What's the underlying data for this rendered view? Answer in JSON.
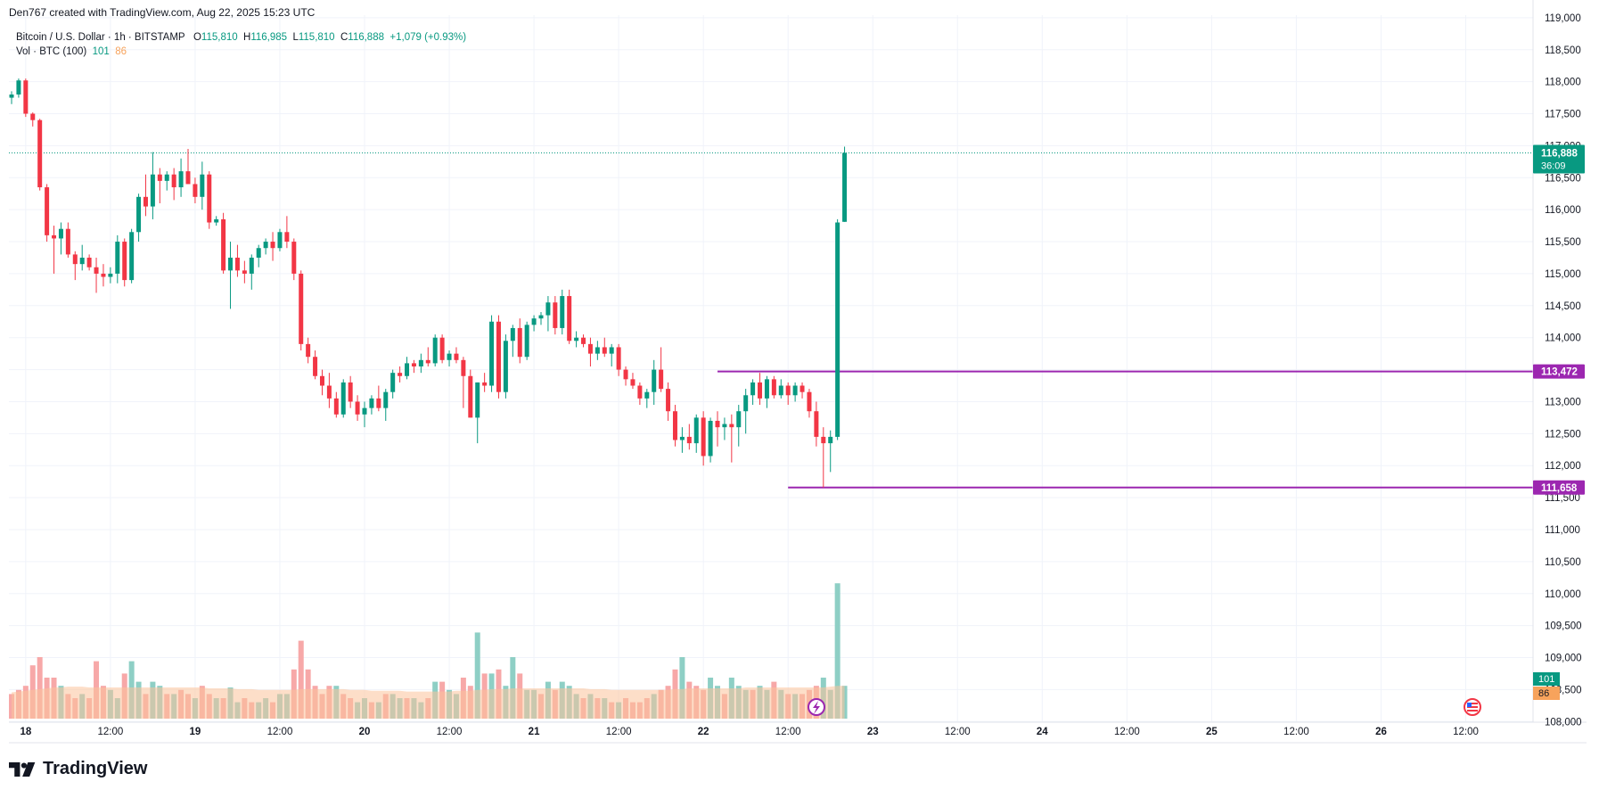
{
  "header": {
    "text": "Den767 created with TradingView.com, Aug 22, 2025 15:23 UTC"
  },
  "legend": {
    "symbol": "Bitcoin / U.S. Dollar · 1h · BITSTAMP",
    "o_label": "O",
    "o_value": "115,810",
    "h_label": "H",
    "h_value": "116,985",
    "l_label": "L",
    "l_value": "115,810",
    "c_label": "C",
    "c_value": "116,888",
    "change": "+1,079 (+0.93%)",
    "vol_label": "Vol · BTC (100)",
    "vol_value_a": "101",
    "vol_value_b": "86"
  },
  "logo": {
    "text": "TradingView"
  },
  "chart_data": {
    "type": "candlestick",
    "y_ticks": [
      "119,000",
      "118,500",
      "118,000",
      "117,500",
      "117,000",
      "116,500",
      "116,000",
      "115,500",
      "115,000",
      "114,500",
      "114,000",
      "113,500",
      "113,000",
      "112,500",
      "112,000",
      "111,500",
      "111,000",
      "110,500",
      "110,000",
      "109,500",
      "109,000",
      "108,500",
      "108,000"
    ],
    "y_tick_values": [
      119000,
      118500,
      118000,
      117500,
      117000,
      116500,
      116000,
      115500,
      115000,
      114500,
      114000,
      113500,
      113000,
      112500,
      112000,
      111500,
      111000,
      110500,
      110000,
      109500,
      109000,
      108500,
      108000
    ],
    "ylim": [
      107990,
      119040
    ],
    "x_ticks": [
      {
        "label": "18",
        "bar": 2,
        "bold": true
      },
      {
        "label": "12:00",
        "bar": 14,
        "bold": false
      },
      {
        "label": "19",
        "bar": 26,
        "bold": true
      },
      {
        "label": "12:00",
        "bar": 38,
        "bold": false
      },
      {
        "label": "20",
        "bar": 50,
        "bold": true
      },
      {
        "label": "12:00",
        "bar": 62,
        "bold": false
      },
      {
        "label": "21",
        "bar": 74,
        "bold": true
      },
      {
        "label": "12:00",
        "bar": 86,
        "bold": false
      },
      {
        "label": "22",
        "bar": 98,
        "bold": true
      },
      {
        "label": "12:00",
        "bar": 110,
        "bold": false
      },
      {
        "label": "23",
        "bar": 122,
        "bold": true
      },
      {
        "label": "12:00",
        "bar": 134,
        "bold": false
      },
      {
        "label": "24",
        "bar": 146,
        "bold": true
      },
      {
        "label": "12:00",
        "bar": 158,
        "bold": false
      },
      {
        "label": "25",
        "bar": 170,
        "bold": true
      },
      {
        "label": "12:00",
        "bar": 182,
        "bold": false
      },
      {
        "label": "26",
        "bar": 194,
        "bold": true
      },
      {
        "label": "12:00",
        "bar": 206,
        "bold": false
      }
    ],
    "last_price": {
      "value": 116888,
      "label": "116,888",
      "countdown": "36:09",
      "color": "#089981"
    },
    "levels": [
      {
        "value": 113472,
        "label": "113,472",
        "from_bar": 100,
        "color": "#9c27b0"
      },
      {
        "value": 111658,
        "label": "111,658",
        "from_bar": 110,
        "color": "#9c27b0"
      }
    ],
    "volume_labels": [
      {
        "text": "101",
        "color": "#089981"
      },
      {
        "text": "86",
        "color": "#f7a35c"
      }
    ],
    "colors": {
      "up": "#089981",
      "down": "#f23645",
      "vol_up": "#8ecfc5",
      "vol_down": "#f7a8a8",
      "vol_ma": "#fbc39a",
      "grid": "#f0f3fa"
    },
    "candles": [
      [
        117750,
        117850,
        117650,
        117800
      ],
      [
        117800,
        118050,
        117750,
        118020
      ],
      [
        118020,
        118050,
        117450,
        117500
      ],
      [
        117500,
        117520,
        117300,
        117400
      ],
      [
        117400,
        117420,
        116300,
        116350
      ],
      [
        116350,
        116400,
        115500,
        115600
      ],
      [
        115600,
        115750,
        115000,
        115550
      ],
      [
        115550,
        115800,
        115300,
        115700
      ],
      [
        115700,
        115800,
        115250,
        115300
      ],
      [
        115300,
        115350,
        114900,
        115150
      ],
      [
        115150,
        115450,
        115050,
        115250
      ],
      [
        115250,
        115300,
        115050,
        115100
      ],
      [
        115100,
        115250,
        114700,
        115000
      ],
      [
        115000,
        115150,
        114800,
        114950
      ],
      [
        114950,
        115100,
        114850,
        115000
      ],
      [
        115000,
        115600,
        114850,
        115500
      ],
      [
        115500,
        115550,
        114800,
        114900
      ],
      [
        114900,
        115700,
        114850,
        115650
      ],
      [
        115650,
        116250,
        115500,
        116200
      ],
      [
        116200,
        116550,
        115900,
        116050
      ],
      [
        116050,
        116900,
        115850,
        116550
      ],
      [
        116550,
        116650,
        116100,
        116450
      ],
      [
        116450,
        116600,
        116300,
        116550
      ],
      [
        116550,
        116650,
        116150,
        116350
      ],
      [
        116350,
        116800,
        116200,
        116600
      ],
      [
        116600,
        116950,
        116450,
        116400
      ],
      [
        116400,
        116500,
        116100,
        116200
      ],
      [
        116200,
        116750,
        116000,
        116550
      ],
      [
        116550,
        116600,
        115700,
        115800
      ],
      [
        115800,
        115900,
        115750,
        115850
      ],
      [
        115850,
        115950,
        115000,
        115050
      ],
      [
        115050,
        115500,
        114450,
        115250
      ],
      [
        115250,
        115450,
        114950,
        115050
      ],
      [
        115050,
        115200,
        114850,
        115000
      ],
      [
        115000,
        115300,
        114750,
        115250
      ],
      [
        115250,
        115450,
        115100,
        115400
      ],
      [
        115400,
        115550,
        115300,
        115500
      ],
      [
        115500,
        115650,
        115200,
        115400
      ],
      [
        115400,
        115700,
        115350,
        115650
      ],
      [
        115650,
        115900,
        115400,
        115500
      ],
      [
        115500,
        115550,
        114900,
        115000
      ],
      [
        115000,
        115050,
        113800,
        113900
      ],
      [
        113900,
        114000,
        113600,
        113700
      ],
      [
        113700,
        113800,
        113350,
        113400
      ],
      [
        113400,
        113500,
        113100,
        113250
      ],
      [
        113250,
        113450,
        112900,
        113050
      ],
      [
        113050,
        113150,
        112750,
        112800
      ],
      [
        112800,
        113350,
        112750,
        113300
      ],
      [
        113300,
        113400,
        112900,
        113000
      ],
      [
        113000,
        113100,
        112700,
        112800
      ],
      [
        112800,
        113000,
        112600,
        112900
      ],
      [
        112900,
        113100,
        112800,
        113050
      ],
      [
        113050,
        113250,
        112850,
        112900
      ],
      [
        112900,
        113200,
        112700,
        113150
      ],
      [
        113150,
        113500,
        113050,
        113450
      ],
      [
        113450,
        113550,
        113300,
        113400
      ],
      [
        113400,
        113700,
        113350,
        113600
      ],
      [
        113600,
        113650,
        113450,
        113550
      ],
      [
        113550,
        113750,
        113450,
        113650
      ],
      [
        113650,
        113850,
        113550,
        113600
      ],
      [
        113600,
        114050,
        113550,
        114000
      ],
      [
        114000,
        114050,
        113600,
        113650
      ],
      [
        113650,
        113800,
        113550,
        113750
      ],
      [
        113750,
        113850,
        113600,
        113650
      ],
      [
        113650,
        113700,
        112900,
        113400
      ],
      [
        113400,
        113500,
        112750,
        112750
      ],
      [
        112750,
        113300,
        112350,
        113300
      ],
      [
        113300,
        113450,
        113150,
        113250
      ],
      [
        113250,
        114350,
        113150,
        114250
      ],
      [
        114250,
        114350,
        113050,
        113150
      ],
      [
        113150,
        114050,
        113050,
        113950
      ],
      [
        113950,
        114200,
        113700,
        114150
      ],
      [
        114150,
        114300,
        113600,
        113700
      ],
      [
        113700,
        114250,
        113650,
        114200
      ],
      [
        114200,
        114350,
        114100,
        114300
      ],
      [
        114300,
        114400,
        114200,
        114350
      ],
      [
        114350,
        114650,
        114100,
        114550
      ],
      [
        114550,
        114650,
        114050,
        114150
      ],
      [
        114150,
        114750,
        114050,
        114650
      ],
      [
        114650,
        114750,
        113900,
        113950
      ],
      [
        113950,
        114100,
        113850,
        114000
      ],
      [
        114000,
        114050,
        113850,
        113900
      ],
      [
        113900,
        114000,
        113550,
        113750
      ],
      [
        113750,
        113950,
        113650,
        113850
      ],
      [
        113850,
        114000,
        113700,
        113750
      ],
      [
        113750,
        113900,
        113550,
        113850
      ],
      [
        113850,
        113900,
        113400,
        113500
      ],
      [
        113500,
        113550,
        113250,
        113350
      ],
      [
        113350,
        113450,
        113200,
        113250
      ],
      [
        113250,
        113300,
        112950,
        113050
      ],
      [
        113050,
        113200,
        112900,
        113150
      ],
      [
        113150,
        113650,
        112950,
        113500
      ],
      [
        113500,
        113850,
        113150,
        113200
      ],
      [
        113200,
        113300,
        112700,
        112850
      ],
      [
        112850,
        112950,
        112300,
        112400
      ],
      [
        112400,
        112600,
        112200,
        112450
      ],
      [
        112450,
        112650,
        112250,
        112350
      ],
      [
        112350,
        112800,
        112200,
        112750
      ],
      [
        112750,
        112850,
        112000,
        112150
      ],
      [
        112150,
        112750,
        112050,
        112700
      ],
      [
        112700,
        112850,
        112300,
        112600
      ],
      [
        112600,
        112750,
        112400,
        112650
      ],
      [
        112650,
        112800,
        112050,
        112600
      ],
      [
        112600,
        112950,
        112300,
        112850
      ],
      [
        112850,
        113200,
        112500,
        113100
      ],
      [
        113100,
        113350,
        112950,
        113300
      ],
      [
        113300,
        113450,
        112950,
        113050
      ],
      [
        113050,
        113400,
        112900,
        113350
      ],
      [
        113350,
        113400,
        113050,
        113100
      ],
      [
        113100,
        113350,
        113050,
        113250
      ],
      [
        113250,
        113300,
        112950,
        113100
      ],
      [
        113100,
        113300,
        113000,
        113250
      ],
      [
        113250,
        113300,
        113050,
        113150
      ],
      [
        113150,
        113200,
        112750,
        112850
      ],
      [
        112850,
        113000,
        112300,
        112450
      ],
      [
        112450,
        112600,
        111658,
        112350
      ],
      [
        112350,
        112550,
        111900,
        112450
      ],
      [
        112450,
        115850,
        112400,
        115800
      ],
      [
        115810,
        116985,
        115810,
        116888
      ]
    ],
    "volumes": [
      [
        3,
        "down"
      ],
      [
        3.5,
        "down"
      ],
      [
        4,
        "down"
      ],
      [
        6.5,
        "down"
      ],
      [
        7.5,
        "down"
      ],
      [
        5,
        "down"
      ],
      [
        5,
        "down"
      ],
      [
        4,
        "up"
      ],
      [
        3,
        "down"
      ],
      [
        2.5,
        "down"
      ],
      [
        3,
        "up"
      ],
      [
        2.5,
        "down"
      ],
      [
        7,
        "down"
      ],
      [
        4,
        "down"
      ],
      [
        3.5,
        "up"
      ],
      [
        2.5,
        "up"
      ],
      [
        5.5,
        "down"
      ],
      [
        7,
        "up"
      ],
      [
        4.5,
        "up"
      ],
      [
        3,
        "down"
      ],
      [
        4.5,
        "up"
      ],
      [
        4,
        "up"
      ],
      [
        3,
        "down"
      ],
      [
        3,
        "up"
      ],
      [
        3.5,
        "down"
      ],
      [
        3,
        "down"
      ],
      [
        2.5,
        "up"
      ],
      [
        4,
        "down"
      ],
      [
        3,
        "down"
      ],
      [
        2.5,
        "up"
      ],
      [
        2.5,
        "down"
      ],
      [
        3.8,
        "up"
      ],
      [
        2,
        "up"
      ],
      [
        2.5,
        "down"
      ],
      [
        2,
        "down"
      ],
      [
        2,
        "up"
      ],
      [
        2.5,
        "up"
      ],
      [
        2,
        "down"
      ],
      [
        3,
        "up"
      ],
      [
        3,
        "up"
      ],
      [
        6,
        "down"
      ],
      [
        9.5,
        "down"
      ],
      [
        6,
        "down"
      ],
      [
        4,
        "down"
      ],
      [
        3,
        "down"
      ],
      [
        4,
        "down"
      ],
      [
        4,
        "up"
      ],
      [
        3,
        "down"
      ],
      [
        2.5,
        "down"
      ],
      [
        2,
        "up"
      ],
      [
        2.5,
        "up"
      ],
      [
        2,
        "down"
      ],
      [
        2,
        "up"
      ],
      [
        3,
        "down"
      ],
      [
        3,
        "up"
      ],
      [
        2.5,
        "up"
      ],
      [
        2.5,
        "down"
      ],
      [
        2.5,
        "up"
      ],
      [
        2,
        "up"
      ],
      [
        2.5,
        "down"
      ],
      [
        4.5,
        "up"
      ],
      [
        4.5,
        "down"
      ],
      [
        3.5,
        "up"
      ],
      [
        3,
        "up"
      ],
      [
        5,
        "down"
      ],
      [
        4,
        "down"
      ],
      [
        10.5,
        "up"
      ],
      [
        5.5,
        "down"
      ],
      [
        5.5,
        "up"
      ],
      [
        6,
        "down"
      ],
      [
        4,
        "up"
      ],
      [
        7.5,
        "up"
      ],
      [
        5.5,
        "down"
      ],
      [
        3.5,
        "up"
      ],
      [
        3.5,
        "up"
      ],
      [
        3,
        "down"
      ],
      [
        4.5,
        "up"
      ],
      [
        3.5,
        "down"
      ],
      [
        4.5,
        "up"
      ],
      [
        4,
        "up"
      ],
      [
        3,
        "up"
      ],
      [
        2.5,
        "down"
      ],
      [
        3,
        "up"
      ],
      [
        2.5,
        "down"
      ],
      [
        2.5,
        "up"
      ],
      [
        2,
        "down"
      ],
      [
        2,
        "up"
      ],
      [
        2.5,
        "down"
      ],
      [
        2,
        "down"
      ],
      [
        2,
        "down"
      ],
      [
        2.5,
        "down"
      ],
      [
        3,
        "up"
      ],
      [
        3.5,
        "down"
      ],
      [
        4,
        "down"
      ],
      [
        6,
        "down"
      ],
      [
        7.5,
        "up"
      ],
      [
        4.5,
        "down"
      ],
      [
        4,
        "down"
      ],
      [
        3.5,
        "down"
      ],
      [
        5,
        "up"
      ],
      [
        4,
        "up"
      ],
      [
        3,
        "down"
      ],
      [
        5,
        "up"
      ],
      [
        4,
        "up"
      ],
      [
        3.5,
        "up"
      ],
      [
        3.5,
        "down"
      ],
      [
        4,
        "up"
      ],
      [
        3.5,
        "up"
      ],
      [
        4.5,
        "down"
      ],
      [
        3.5,
        "up"
      ],
      [
        3,
        "down"
      ],
      [
        3,
        "up"
      ],
      [
        3,
        "down"
      ],
      [
        3.5,
        "down"
      ],
      [
        4,
        "down"
      ],
      [
        5,
        "up"
      ],
      [
        3.5,
        "up"
      ],
      [
        16.5,
        "up"
      ],
      [
        4,
        "up"
      ]
    ],
    "volume_ma": [
      3.2,
      3.3,
      3.4,
      3.5,
      3.6,
      3.7,
      3.8,
      3.8,
      3.9,
      3.9,
      3.9,
      3.8,
      3.8,
      3.8,
      3.8,
      3.8,
      3.8,
      3.8,
      3.8,
      3.8,
      3.8,
      3.8,
      3.8,
      3.8,
      3.8,
      3.8,
      3.8,
      3.8,
      3.7,
      3.7,
      3.7,
      3.7,
      3.6,
      3.6,
      3.6,
      3.5,
      3.5,
      3.5,
      3.5,
      3.5,
      3.5,
      3.6,
      3.6,
      3.6,
      3.6,
      3.6,
      3.6,
      3.6,
      3.5,
      3.5,
      3.5,
      3.4,
      3.4,
      3.4,
      3.4,
      3.4,
      3.3,
      3.3,
      3.3,
      3.3,
      3.3,
      3.3,
      3.3,
      3.4,
      3.4,
      3.4,
      3.5,
      3.5,
      3.6,
      3.6,
      3.6,
      3.7,
      3.7,
      3.7,
      3.7,
      3.7,
      3.7,
      3.7,
      3.7,
      3.7,
      3.7,
      3.7,
      3.6,
      3.6,
      3.6,
      3.5,
      3.5,
      3.5,
      3.5,
      3.5,
      3.5,
      3.5,
      3.5,
      3.5,
      3.6,
      3.6,
      3.7,
      3.7,
      3.7,
      3.7,
      3.7,
      3.7,
      3.7,
      3.7,
      3.8,
      3.8,
      3.8,
      3.8,
      3.8,
      3.8,
      3.8,
      3.8,
      3.8,
      3.8,
      3.8,
      3.8,
      3.9,
      4.0,
      4.0
    ]
  }
}
